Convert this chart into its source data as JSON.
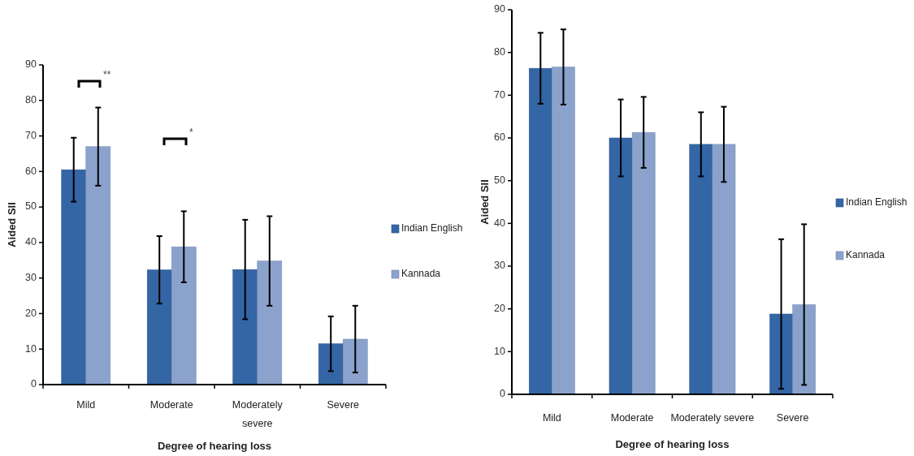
{
  "chart_data": [
    {
      "type": "bar",
      "xlabel": "Degree of hearing loss",
      "ylabel": "Aided SII",
      "categories": [
        "Mild",
        "Moderate",
        "Moderately severe",
        "Severe"
      ],
      "series": [
        {
          "name": "Indian English",
          "color": "#3465a5",
          "values": [
            60.5,
            32.3,
            32.4,
            11.5
          ],
          "errors": [
            9,
            9.5,
            14,
            7.7
          ]
        },
        {
          "name": "Kannada",
          "color": "#8aa2cc",
          "values": [
            67,
            38.8,
            34.8,
            12.8
          ],
          "errors": [
            11,
            10,
            12.6,
            9.4
          ]
        }
      ],
      "ylim": [
        0,
        90
      ],
      "yticks": [
        0,
        10,
        20,
        30,
        40,
        50,
        60,
        70,
        80,
        90
      ],
      "legend": "right",
      "annotations": [
        "**",
        "*"
      ]
    },
    {
      "type": "bar",
      "xlabel": "Degree of hearing loss",
      "ylabel": "Aided SII",
      "categories": [
        "Mild",
        "Moderate",
        "Moderately severe",
        "Severe"
      ],
      "series": [
        {
          "name": "Indian English",
          "color": "#3465a5",
          "values": [
            76.3,
            60,
            58.5,
            18.8
          ],
          "errors": [
            8.3,
            9,
            7.5,
            17.5
          ]
        },
        {
          "name": "Kannada",
          "color": "#8aa2cc",
          "values": [
            76.6,
            61.3,
            58.5,
            21
          ],
          "errors": [
            8.8,
            8.3,
            8.8,
            18.8
          ]
        }
      ],
      "ylim": [
        0,
        90
      ],
      "yticks": [
        0,
        10,
        20,
        30,
        40,
        50,
        60,
        70,
        80,
        90
      ],
      "legend": "right"
    }
  ]
}
